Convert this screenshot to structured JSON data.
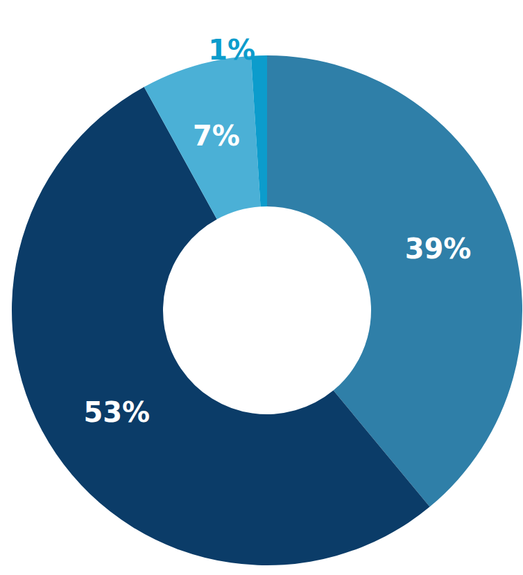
{
  "chart_data": {
    "type": "pie",
    "values": [
      39,
      53,
      7,
      1
    ],
    "value_labels": [
      "39%",
      "53%",
      "7%",
      "1%"
    ],
    "colors": [
      "#2f7fa8",
      "#0b3c68",
      "#4bb0d6",
      "#0c9ccc"
    ],
    "data_labels": true
  }
}
